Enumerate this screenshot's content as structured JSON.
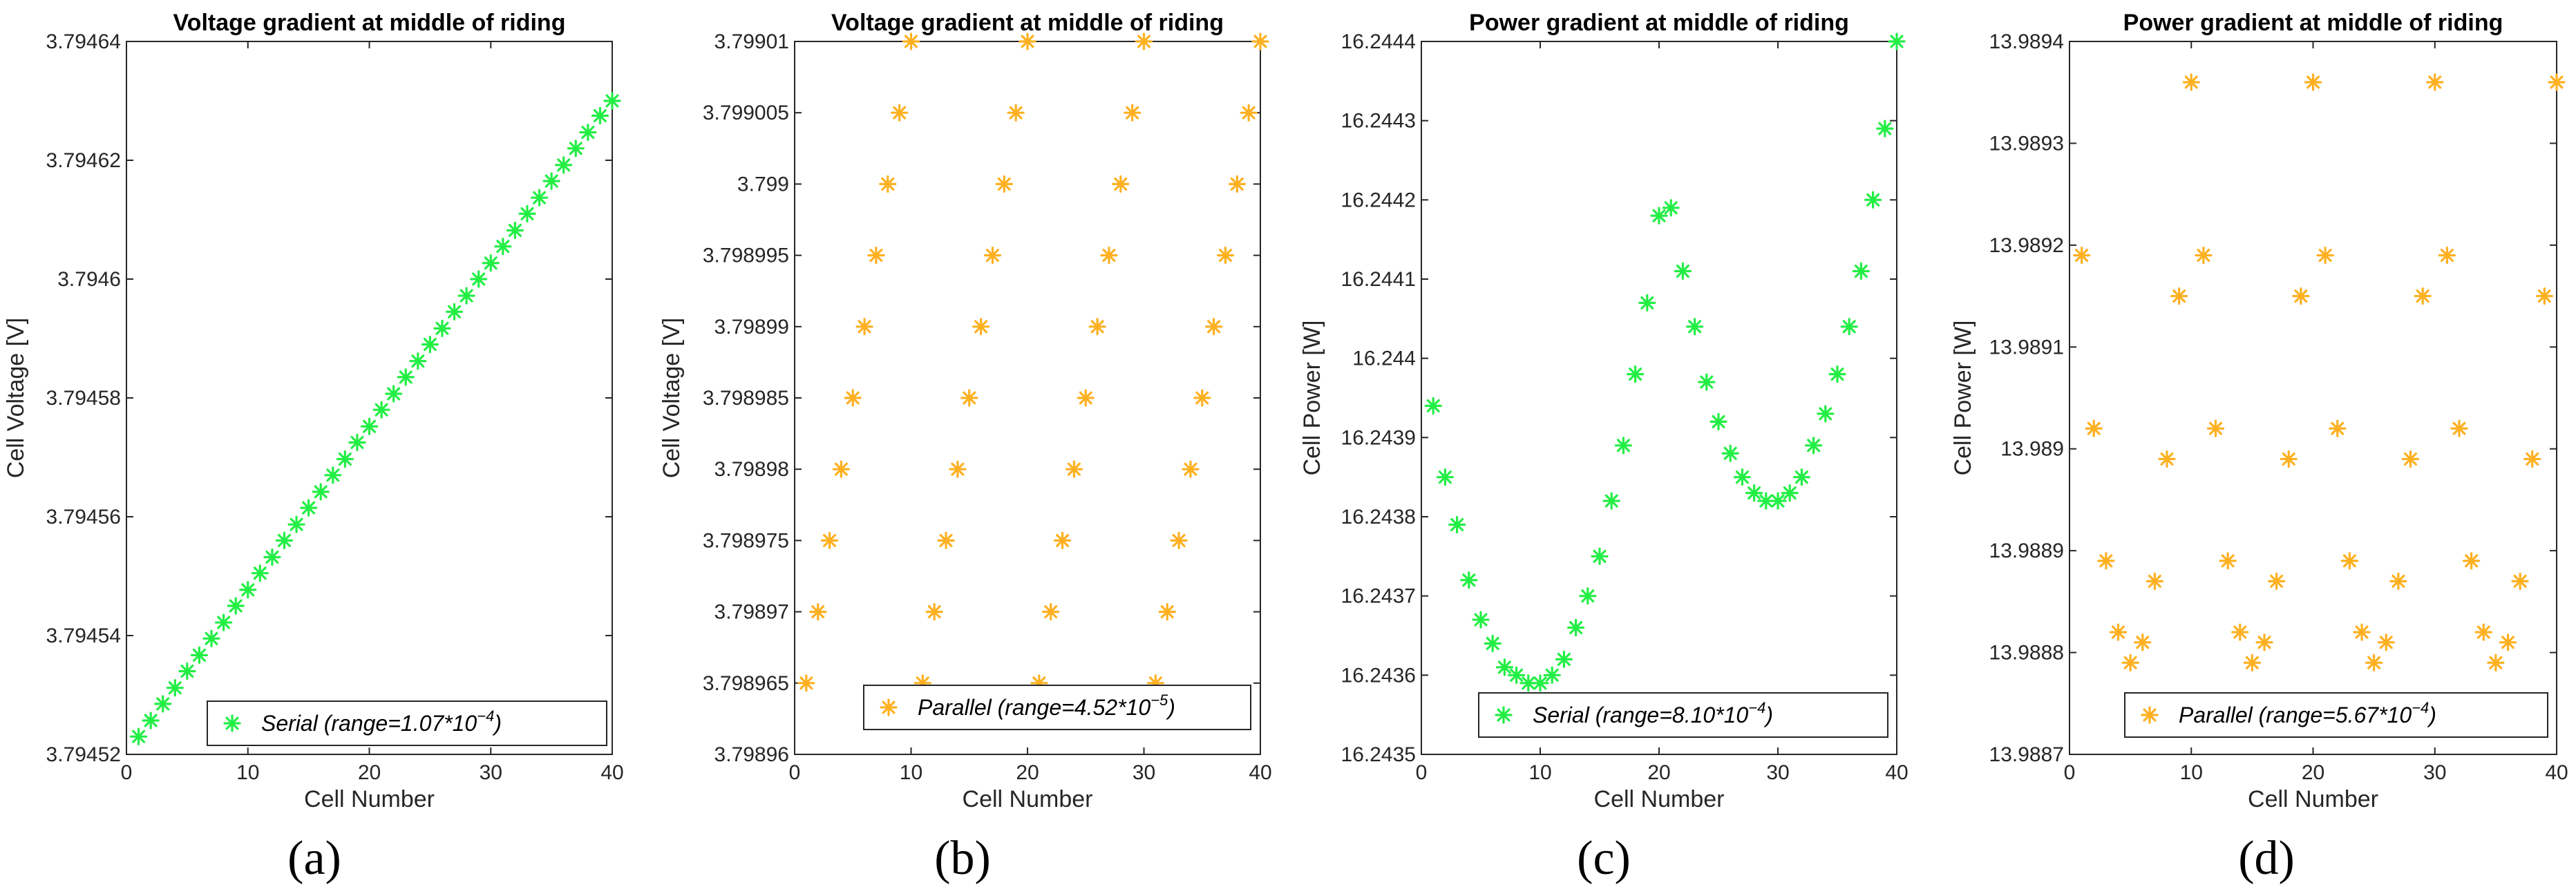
{
  "colors": {
    "serial": "#22ee44",
    "parallel": "#ffb020",
    "axis": "#262626"
  },
  "chart_data": [
    {
      "panel": "(a)",
      "type": "scatter",
      "marker": "asterisk",
      "title": "Voltage gradient at middle of riding",
      "xlabel": "Cell Number",
      "ylabel": "Cell Voltage [V]",
      "xlim": [
        0,
        40
      ],
      "ylim": [
        3.79452,
        3.79464
      ],
      "xticks": [
        0,
        10,
        20,
        30,
        40
      ],
      "xtick_labels": [
        "0",
        "10",
        "20",
        "30",
        "40"
      ],
      "yticks": [
        3.79452,
        3.79454,
        3.79456,
        3.79458,
        3.7946,
        3.79462,
        3.79464
      ],
      "ytick_labels": [
        "3.79452",
        "3.79454",
        "3.79456",
        "3.79458",
        "3.7946",
        "3.79462",
        "3.79464"
      ],
      "legend_position": "bottom-right",
      "series": [
        {
          "name": "Serial",
          "legend_label": "Serial (range=1.07*10",
          "legend_exp": "−4",
          "legend_tail": ")",
          "color": "#22ee44",
          "x": [
            1,
            2,
            3,
            4,
            5,
            6,
            7,
            8,
            9,
            10,
            11,
            12,
            13,
            14,
            15,
            16,
            17,
            18,
            19,
            20,
            21,
            22,
            23,
            24,
            25,
            26,
            27,
            28,
            29,
            30,
            31,
            32,
            33,
            34,
            35,
            36,
            37,
            38,
            39,
            40
          ],
          "y": [
            3.794523,
            3.7945257,
            3.7945285,
            3.7945312,
            3.794534,
            3.7945367,
            3.7945395,
            3.7945422,
            3.794545,
            3.7945477,
            3.7945505,
            3.7945532,
            3.794556,
            3.7945587,
            3.7945615,
            3.7945642,
            3.794567,
            3.7945697,
            3.7945725,
            3.7945752,
            3.794578,
            3.7945807,
            3.7945835,
            3.7945862,
            3.794589,
            3.7945917,
            3.7945945,
            3.7945972,
            3.7946,
            3.7946027,
            3.7946055,
            3.7946082,
            3.794611,
            3.7946137,
            3.7946165,
            3.7946192,
            3.794622,
            3.7946247,
            3.7946275,
            3.79463
          ]
        }
      ]
    },
    {
      "panel": "(b)",
      "type": "scatter",
      "marker": "asterisk",
      "title": "Voltage gradient at middle of riding",
      "xlabel": "Cell Number",
      "ylabel": "Cell Voltage [V]",
      "xlim": [
        0,
        40
      ],
      "ylim": [
        3.79896,
        3.79901
      ],
      "xticks": [
        0,
        10,
        20,
        30,
        40
      ],
      "xtick_labels": [
        "0",
        "10",
        "20",
        "30",
        "40"
      ],
      "yticks": [
        3.79896,
        3.798965,
        3.79897,
        3.798975,
        3.79898,
        3.798985,
        3.79899,
        3.798995,
        3.799,
        3.799005,
        3.79901
      ],
      "ytick_labels": [
        "3.79896",
        "3.798965",
        "3.79897",
        "3.798975",
        "3.79898",
        "3.798985",
        "3.79899",
        "3.798995",
        "3.799",
        "3.799005",
        "3.79901"
      ],
      "legend_position": "bottom-right",
      "series": [
        {
          "name": "Parallel",
          "legend_label": "Parallel (range=4.52*10",
          "legend_exp": "−5",
          "legend_tail": ")",
          "color": "#ffb020",
          "x": [
            1,
            2,
            3,
            4,
            5,
            6,
            7,
            8,
            9,
            10,
            11,
            12,
            13,
            14,
            15,
            16,
            17,
            18,
            19,
            20,
            21,
            22,
            23,
            24,
            25,
            26,
            27,
            28,
            29,
            30,
            31,
            32,
            33,
            34,
            35,
            36,
            37,
            38,
            39,
            40
          ],
          "y": [
            3.798965,
            3.79897,
            3.798975,
            3.79898,
            3.798985,
            3.79899,
            3.798995,
            3.799,
            3.799005,
            3.79901,
            3.798965,
            3.79897,
            3.798975,
            3.79898,
            3.798985,
            3.79899,
            3.798995,
            3.799,
            3.799005,
            3.79901,
            3.798965,
            3.79897,
            3.798975,
            3.79898,
            3.798985,
            3.79899,
            3.798995,
            3.799,
            3.799005,
            3.79901,
            3.798965,
            3.79897,
            3.798975,
            3.79898,
            3.798985,
            3.79899,
            3.798995,
            3.799,
            3.799005,
            3.79901
          ]
        }
      ]
    },
    {
      "panel": "(c)",
      "type": "scatter",
      "marker": "asterisk",
      "title": "Power gradient at middle of riding",
      "xlabel": "Cell Number",
      "ylabel": "Cell Power [W]",
      "xlim": [
        0,
        40
      ],
      "ylim": [
        16.2435,
        16.2444
      ],
      "xticks": [
        0,
        10,
        20,
        30,
        40
      ],
      "xtick_labels": [
        "0",
        "10",
        "20",
        "30",
        "40"
      ],
      "yticks": [
        16.2435,
        16.2436,
        16.2437,
        16.2438,
        16.2439,
        16.244,
        16.2441,
        16.2442,
        16.2443,
        16.2444
      ],
      "ytick_labels": [
        "16.2435",
        "16.2436",
        "16.2437",
        "16.2438",
        "16.2439",
        "16.244",
        "16.2441",
        "16.2442",
        "16.2443",
        "16.2444"
      ],
      "legend_position": "bottom-right",
      "series": [
        {
          "name": "Serial",
          "legend_label": "Serial (range=8.10*10",
          "legend_exp": "−4",
          "legend_tail": ")",
          "color": "#22ee44",
          "x": [
            1,
            2,
            3,
            4,
            5,
            6,
            7,
            8,
            9,
            10,
            11,
            12,
            13,
            14,
            15,
            16,
            17,
            18,
            19,
            20,
            21,
            22,
            23,
            24,
            25,
            26,
            27,
            28,
            29,
            30,
            31,
            32,
            33,
            34,
            35,
            36,
            37,
            38,
            39,
            40
          ],
          "y": [
            16.24394,
            16.24385,
            16.24379,
            16.24372,
            16.24367,
            16.24364,
            16.24361,
            16.2436,
            16.24359,
            16.24359,
            16.2436,
            16.24362,
            16.24366,
            16.2437,
            16.24375,
            16.24382,
            16.24389,
            16.24398,
            16.24407,
            16.24418,
            16.24419,
            16.24411,
            16.24404,
            16.24397,
            16.24392,
            16.24388,
            16.24385,
            16.24383,
            16.24382,
            16.24382,
            16.24383,
            16.24385,
            16.24389,
            16.24393,
            16.24398,
            16.24404,
            16.24411,
            16.2442,
            16.24429,
            16.2444
          ]
        }
      ]
    },
    {
      "panel": "(d)",
      "type": "scatter",
      "marker": "asterisk",
      "title": "Power gradient at middle of riding",
      "xlabel": "Cell Number",
      "ylabel": "Cell Power [W]",
      "xlim": [
        0,
        40
      ],
      "ylim": [
        13.9887,
        13.9894
      ],
      "xticks": [
        0,
        10,
        20,
        30,
        40
      ],
      "xtick_labels": [
        "0",
        "10",
        "20",
        "30",
        "40"
      ],
      "yticks": [
        13.9887,
        13.9888,
        13.9889,
        13.989,
        13.9891,
        13.9892,
        13.9893,
        13.9894
      ],
      "ytick_labels": [
        "13.9887",
        "13.9888",
        "13.9889",
        "13.989",
        "13.9891",
        "13.9892",
        "13.9893",
        "13.9894"
      ],
      "legend_position": "bottom-right",
      "series": [
        {
          "name": "Parallel",
          "legend_label": "Parallel (range=5.67*10",
          "legend_exp": "−4",
          "legend_tail": ")",
          "color": "#ffb020",
          "x": [
            1,
            2,
            3,
            4,
            5,
            6,
            7,
            8,
            9,
            10,
            11,
            12,
            13,
            14,
            15,
            16,
            17,
            18,
            19,
            20,
            21,
            22,
            23,
            24,
            25,
            26,
            27,
            28,
            29,
            30,
            31,
            32,
            33,
            34,
            35,
            36,
            37,
            38,
            39,
            40
          ],
          "y": [
            13.98919,
            13.98902,
            13.98889,
            13.98882,
            13.98879,
            13.98881,
            13.98887,
            13.98899,
            13.98915,
            13.98936,
            13.98919,
            13.98902,
            13.98889,
            13.98882,
            13.98879,
            13.98881,
            13.98887,
            13.98899,
            13.98915,
            13.98936,
            13.98919,
            13.98902,
            13.98889,
            13.98882,
            13.98879,
            13.98881,
            13.98887,
            13.98899,
            13.98915,
            13.98936,
            13.98919,
            13.98902,
            13.98889,
            13.98882,
            13.98879,
            13.98881,
            13.98887,
            13.98899,
            13.98915,
            13.98936
          ]
        }
      ]
    }
  ]
}
